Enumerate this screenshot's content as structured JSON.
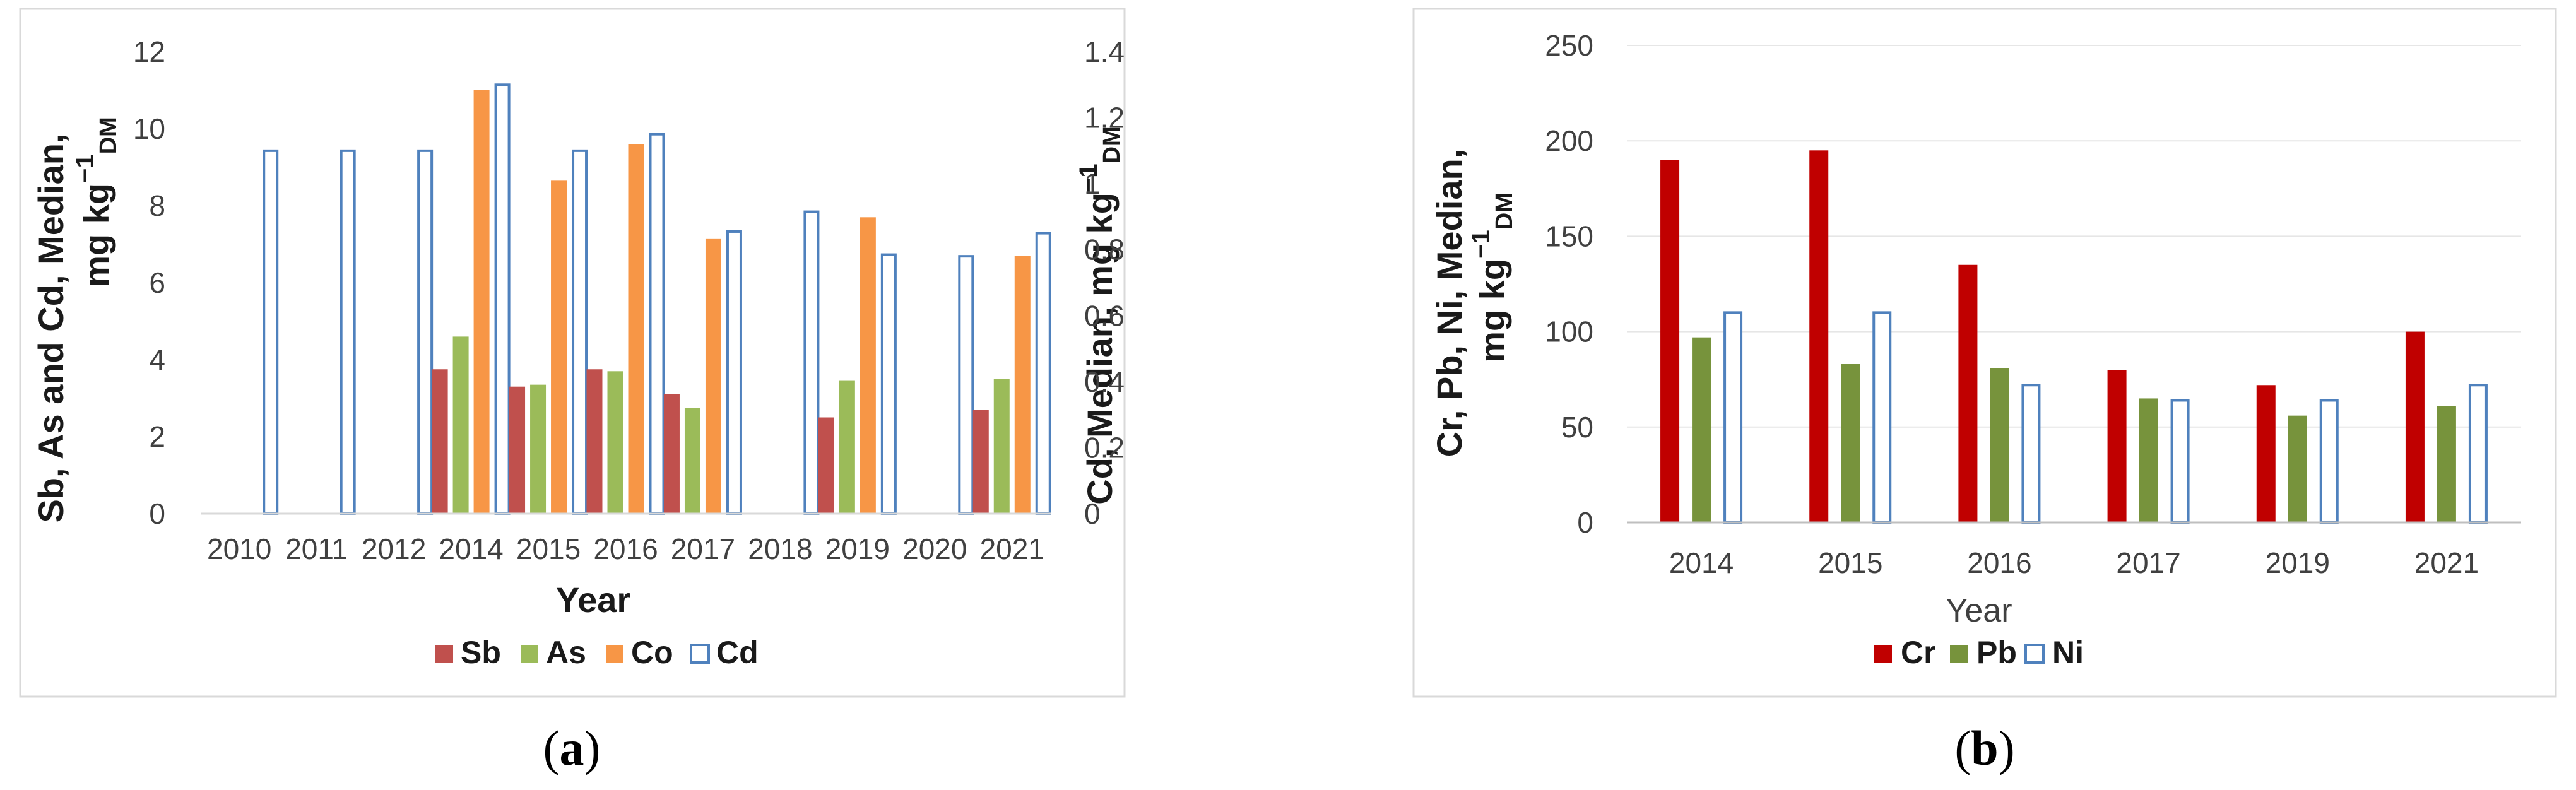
{
  "panel_a": {
    "caption_open": "(",
    "caption_letter": "a",
    "caption_close": ")",
    "chart_data": {
      "type": "bar",
      "categories": [
        "2010",
        "2011",
        "2012",
        "2014",
        "2015",
        "2016",
        "2017",
        "2018",
        "2019",
        "2020",
        "2021"
      ],
      "xlabel": "Year",
      "ylabel_left": "Sb, As and Cd, Median,",
      "ylabel_left2": "mg kg",
      "ylabel_left2_sup": "−1",
      "ylabel_left2_sub": "DM",
      "ylabel_right": "Cd, Median, mg kg",
      "ylabel_right_sup": "−1",
      "ylabel_right_sub": "DM",
      "ylim_left": [
        0,
        12
      ],
      "yticks_left": [
        "0",
        "2",
        "4",
        "6",
        "8",
        "10",
        "12"
      ],
      "ylim_right": [
        0,
        1.4
      ],
      "yticks_right": [
        "0",
        "0.2",
        "0.4",
        "0.6",
        "0.8",
        "1",
        "1.2",
        "1.4"
      ],
      "series": [
        {
          "name": "Sb",
          "axis": "left",
          "color": "#C0504D",
          "style": "filled",
          "values": [
            null,
            null,
            null,
            3.75,
            3.3,
            3.75,
            3.1,
            null,
            2.5,
            null,
            2.7
          ]
        },
        {
          "name": "As",
          "axis": "left",
          "color": "#9BBB59",
          "style": "filled",
          "values": [
            null,
            null,
            null,
            4.6,
            3.35,
            3.7,
            2.75,
            null,
            3.45,
            null,
            3.5
          ]
        },
        {
          "name": "Co",
          "axis": "left",
          "color": "#F79646",
          "style": "filled",
          "values": [
            null,
            null,
            null,
            11.0,
            8.65,
            9.6,
            7.15,
            null,
            7.7,
            null,
            6.7
          ]
        },
        {
          "name": "Cd",
          "axis": "right",
          "color": "#4F81BD",
          "style": "outline",
          "values": [
            1.1,
            1.1,
            1.1,
            1.3,
            1.1,
            1.15,
            0.855,
            0.915,
            0.785,
            0.78,
            0.85
          ]
        }
      ]
    }
  },
  "panel_b": {
    "caption_open": "(",
    "caption_letter": "b",
    "caption_close": ")",
    "chart_data": {
      "type": "bar",
      "categories": [
        "2014",
        "2015",
        "2016",
        "2017",
        "2019",
        "2021"
      ],
      "xlabel": "Year",
      "ylabel_line1": "Cr, Pb, Ni, Median,",
      "ylabel_line2": "mg kg",
      "ylabel_line2_sup": "−1",
      "ylabel_line2_sub": "DM",
      "ylim": [
        0,
        250
      ],
      "yticks": [
        "0",
        "50",
        "100",
        "150",
        "200",
        "250"
      ],
      "series": [
        {
          "name": "Cr",
          "color": "#C00000",
          "style": "filled",
          "values": [
            190,
            195,
            135,
            80,
            72,
            100
          ]
        },
        {
          "name": "Pb",
          "color": "#77933C",
          "style": "filled",
          "values": [
            97,
            83,
            81,
            65,
            56,
            61
          ]
        },
        {
          "name": "Ni",
          "color": "#4F81BD",
          "style": "outline",
          "values": [
            110,
            110,
            72,
            64,
            64,
            72
          ]
        }
      ]
    }
  }
}
